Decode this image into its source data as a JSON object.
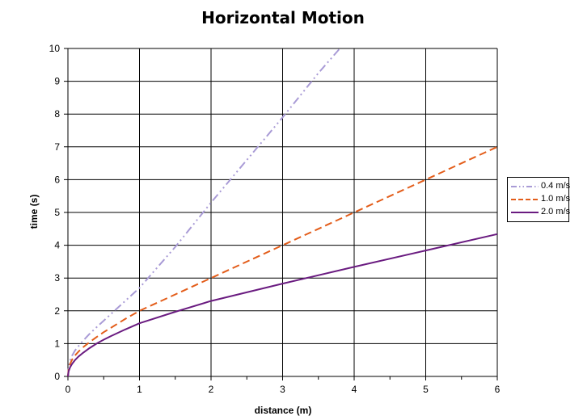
{
  "chart_data": {
    "type": "line",
    "title": "Horizontal Motion",
    "xlabel": "distance (m)",
    "ylabel": "time (s)",
    "xlim": [
      0,
      6
    ],
    "ylim": [
      0,
      10
    ],
    "x_ticks": [
      "0",
      "1",
      "2",
      "3",
      "4",
      "5",
      "6"
    ],
    "y_ticks": [
      "0",
      "1",
      "2",
      "3",
      "4",
      "5",
      "6",
      "7",
      "8",
      "9",
      "10"
    ],
    "grid": true,
    "legend_position": "right",
    "series": [
      {
        "name": "0.4 m/s",
        "color": "#a99bd6",
        "style": "dash-dot-dot",
        "x": [
          0,
          0.01,
          0.03,
          0.06,
          0.1,
          0.15,
          0.2,
          0.3,
          0.4,
          0.5,
          0.6,
          0.8,
          1.0,
          1.2,
          1.5,
          2.0,
          2.5,
          3.0,
          3.5,
          3.8
        ],
        "y": [
          0,
          0.28,
          0.48,
          0.64,
          0.79,
          0.93,
          1.06,
          1.29,
          1.5,
          1.7,
          1.9,
          2.3,
          2.7,
          3.2,
          3.95,
          5.3,
          6.6,
          7.9,
          9.25,
          10.0
        ]
      },
      {
        "name": "1.0 m/s",
        "color": "#e35d1a",
        "style": "dashed",
        "x": [
          0,
          0.01,
          0.03,
          0.06,
          0.1,
          0.15,
          0.2,
          0.3,
          0.4,
          0.5,
          0.6,
          0.8,
          1.0,
          1.5,
          2.0,
          3.0,
          4.0,
          5.0,
          6.0
        ],
        "y": [
          0,
          0.22,
          0.38,
          0.52,
          0.64,
          0.76,
          0.87,
          1.04,
          1.2,
          1.35,
          1.48,
          1.75,
          2.0,
          2.5,
          3.0,
          4.0,
          5.0,
          6.0,
          7.0
        ]
      },
      {
        "name": "2.0 m/s",
        "color": "#6a1b80",
        "style": "solid",
        "x": [
          0,
          0.01,
          0.03,
          0.06,
          0.1,
          0.15,
          0.2,
          0.3,
          0.4,
          0.5,
          0.6,
          0.8,
          1.0,
          1.5,
          2.0,
          3.0,
          4.0,
          5.0,
          6.0
        ],
        "y": [
          0,
          0.16,
          0.28,
          0.39,
          0.5,
          0.61,
          0.7,
          0.86,
          1.0,
          1.12,
          1.23,
          1.43,
          1.62,
          1.97,
          2.3,
          2.83,
          3.34,
          3.84,
          4.34
        ]
      }
    ]
  }
}
